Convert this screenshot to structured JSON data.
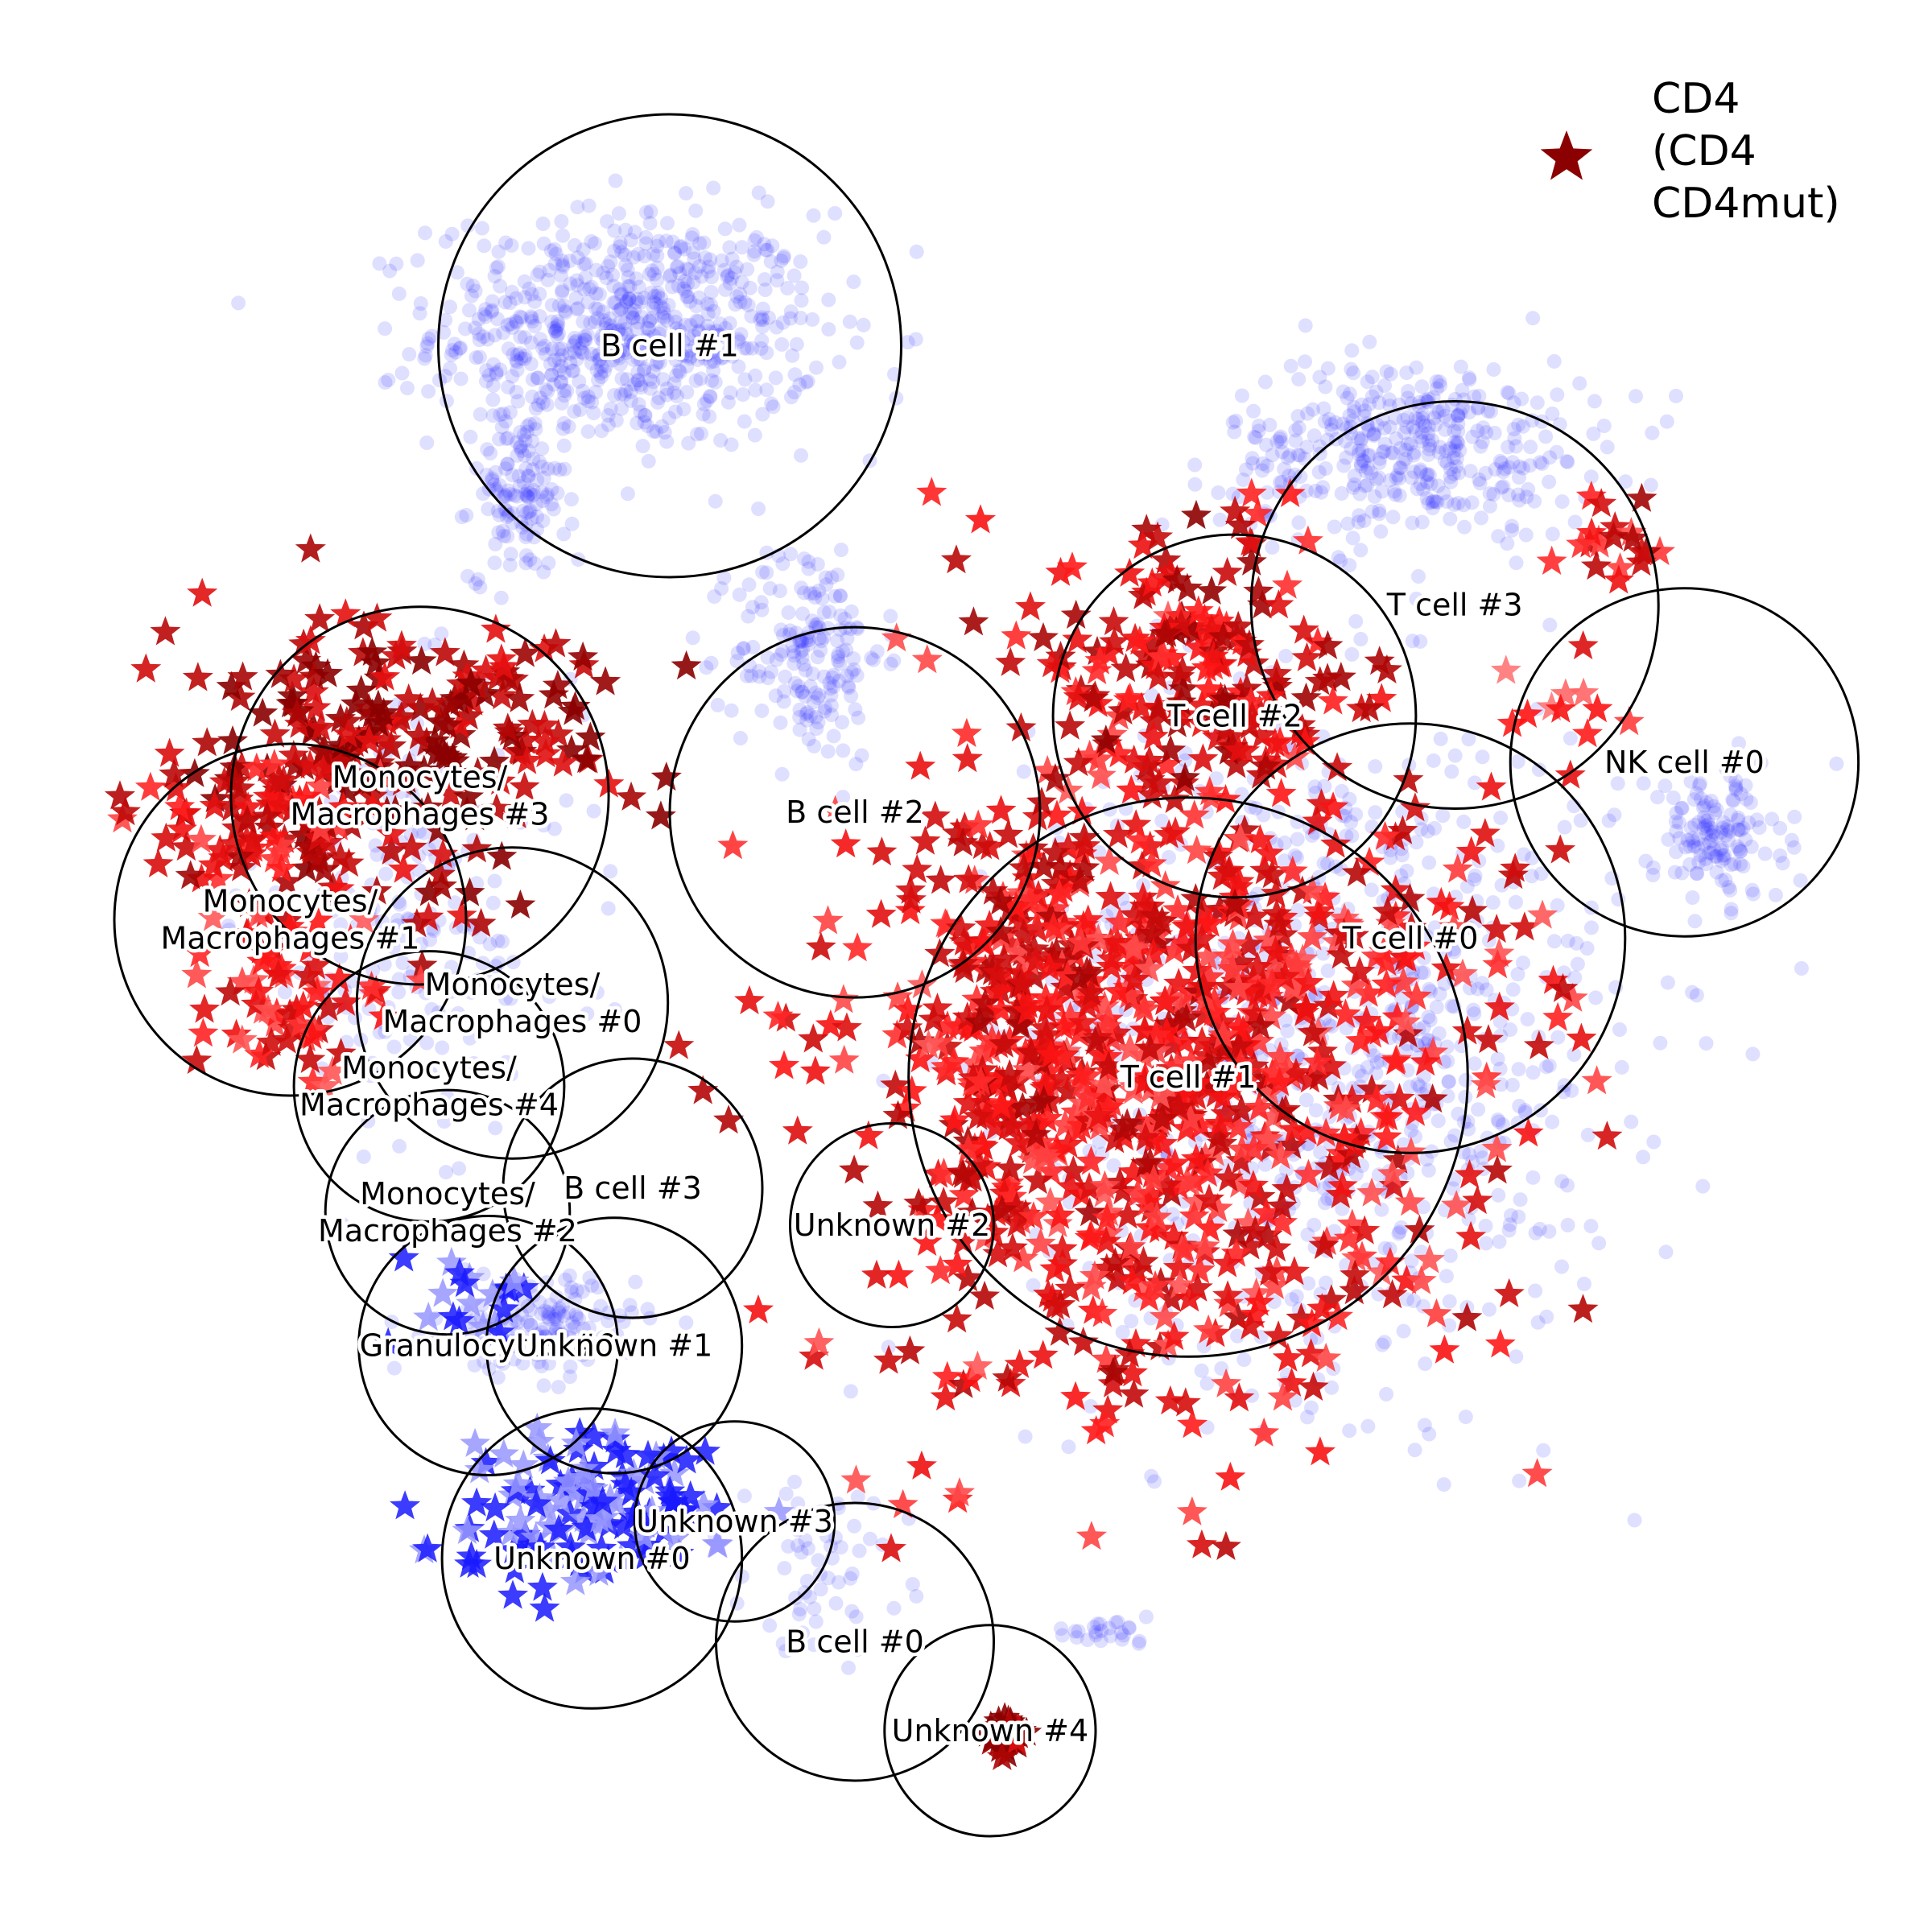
{
  "chart_data": {
    "type": "scatter",
    "title": "",
    "xlabel": "",
    "ylabel": "",
    "axes_visible": false,
    "grid": false,
    "legend": {
      "placement": "top-right",
      "marker": "star",
      "marker_color": "#8b0000",
      "lines": [
        "CD4",
        "(CD4",
        "CD4mut)"
      ]
    },
    "colors": {
      "background_cells": "#1f1fff",
      "expression_low": "#ffc0c0",
      "expression_mid": "#ff2020",
      "expression_high": "#8b0000",
      "negative": "#1a1aff",
      "circle_stroke": "#000000"
    },
    "x_range": [
      0,
      100
    ],
    "y_range": [
      0,
      100
    ],
    "background_regions": [
      {
        "x": 31.7,
        "y": 84.3,
        "sx": 5.2,
        "sy": 3.2,
        "n": 700
      },
      {
        "x": 25.8,
        "y": 75.3,
        "sx": 1.3,
        "sy": 2.2,
        "n": 120
      },
      {
        "x": 41.5,
        "y": 67.0,
        "sx": 2.0,
        "sy": 3.0,
        "n": 180
      },
      {
        "x": 69.5,
        "y": 46.0,
        "sx": 8.0,
        "sy": 9.0,
        "n": 900
      },
      {
        "x": 74.0,
        "y": 78.0,
        "sx": 5.0,
        "sy": 2.4,
        "n": 400
      },
      {
        "x": 90.5,
        "y": 57.0,
        "sx": 1.8,
        "sy": 1.8,
        "n": 140
      },
      {
        "x": 27.0,
        "y": 30.5,
        "sx": 2.6,
        "sy": 1.3,
        "n": 140
      },
      {
        "x": 42.5,
        "y": 17.5,
        "sx": 2.2,
        "sy": 2.2,
        "n": 60
      },
      {
        "x": 20.0,
        "y": 52.0,
        "sx": 4.5,
        "sy": 6.0,
        "n": 200
      },
      {
        "x": 57.0,
        "y": 14.0,
        "sx": 1.5,
        "sy": 0.3,
        "n": 25
      }
    ],
    "star_regions": [
      {
        "x": 19.5,
        "y": 62.0,
        "sx": 5.5,
        "sy": 3.5,
        "n": 220,
        "level": 0.9
      },
      {
        "x": 12.0,
        "y": 57.0,
        "sx": 3.0,
        "sy": 2.5,
        "n": 90,
        "level": 0.6
      },
      {
        "x": 14.0,
        "y": 48.5,
        "sx": 2.5,
        "sy": 3.0,
        "n": 60,
        "level": 0.5
      },
      {
        "x": 61.0,
        "y": 45.0,
        "sx": 8.5,
        "sy": 9.0,
        "n": 900,
        "level": 0.55
      },
      {
        "x": 62.0,
        "y": 67.0,
        "sx": 4.5,
        "sy": 3.5,
        "n": 160,
        "level": 0.7
      },
      {
        "x": 53.0,
        "y": 45.0,
        "sx": 2.5,
        "sy": 8.0,
        "n": 120,
        "level": 0.6
      },
      {
        "x": 84.5,
        "y": 73.5,
        "sx": 1.5,
        "sy": 1.5,
        "n": 20,
        "level": 0.6
      },
      {
        "x": 82.0,
        "y": 64.0,
        "sx": 1.5,
        "sy": 1.5,
        "n": 12,
        "level": 0.4
      },
      {
        "x": 52.5,
        "y": 8.5,
        "sx": 0.6,
        "sy": 0.5,
        "n": 40,
        "level": 0.95
      }
    ],
    "negative_star_regions": [
      {
        "x": 29.5,
        "y": 20.5,
        "sx": 3.5,
        "sy": 2.0,
        "n": 130
      },
      {
        "x": 23.5,
        "y": 32.0,
        "sx": 1.8,
        "sy": 1.5,
        "n": 20
      }
    ],
    "circles": [
      {
        "label": "B cell #1",
        "x": 34.0,
        "y": 83.5,
        "r": 12.5
      },
      {
        "label": "B cell #2",
        "x": 44.0,
        "y": 58.3,
        "r": 10.0
      },
      {
        "label": "B cell #3",
        "x": 32.0,
        "y": 38.0,
        "r": 7.0
      },
      {
        "label": "B cell #0",
        "x": 44.0,
        "y": 13.5,
        "r": 7.5
      },
      {
        "label": "T cell #3",
        "x": 76.4,
        "y": 69.5,
        "r": 11.0
      },
      {
        "label": "T cell #2",
        "x": 64.5,
        "y": 63.5,
        "r": 9.8
      },
      {
        "label": "T cell #0",
        "x": 74.0,
        "y": 51.5,
        "r": 11.6
      },
      {
        "label": "T cell #1",
        "x": 62.0,
        "y": 44.0,
        "r": 15.1
      },
      {
        "label": "NK cell #0",
        "x": 88.8,
        "y": 61.0,
        "r": 9.4
      },
      {
        "label": "Monocytes/\nMacrophages #3",
        "x": 20.5,
        "y": 59.2,
        "r": 10.2
      },
      {
        "label": "Monocytes/\nMacrophages #1",
        "x": 13.5,
        "y": 52.5,
        "r": 9.5
      },
      {
        "label": "Monocytes/\nMacrophages #0",
        "x": 25.5,
        "y": 48.0,
        "r": 8.4
      },
      {
        "label": "Monocytes/\nMacrophages #4",
        "x": 21.0,
        "y": 43.5,
        "r": 7.3
      },
      {
        "label": "Monocytes/\nMacrophages #2",
        "x": 22.0,
        "y": 36.7,
        "r": 6.6
      },
      {
        "label": "Granulocytes #0",
        "x": 24.2,
        "y": 29.5,
        "r": 7.0
      },
      {
        "label": "Unknown #1",
        "x": 31.0,
        "y": 29.5,
        "r": 6.9
      },
      {
        "label": "Unknown #2",
        "x": 46.0,
        "y": 36.0,
        "r": 5.5
      },
      {
        "label": "Unknown #3",
        "x": 37.5,
        "y": 20.0,
        "r": 5.4
      },
      {
        "label": "Unknown #0",
        "x": 29.8,
        "y": 18.0,
        "r": 8.1
      },
      {
        "label": "Unknown #4",
        "x": 51.3,
        "y": 8.7,
        "r": 5.7
      }
    ]
  }
}
